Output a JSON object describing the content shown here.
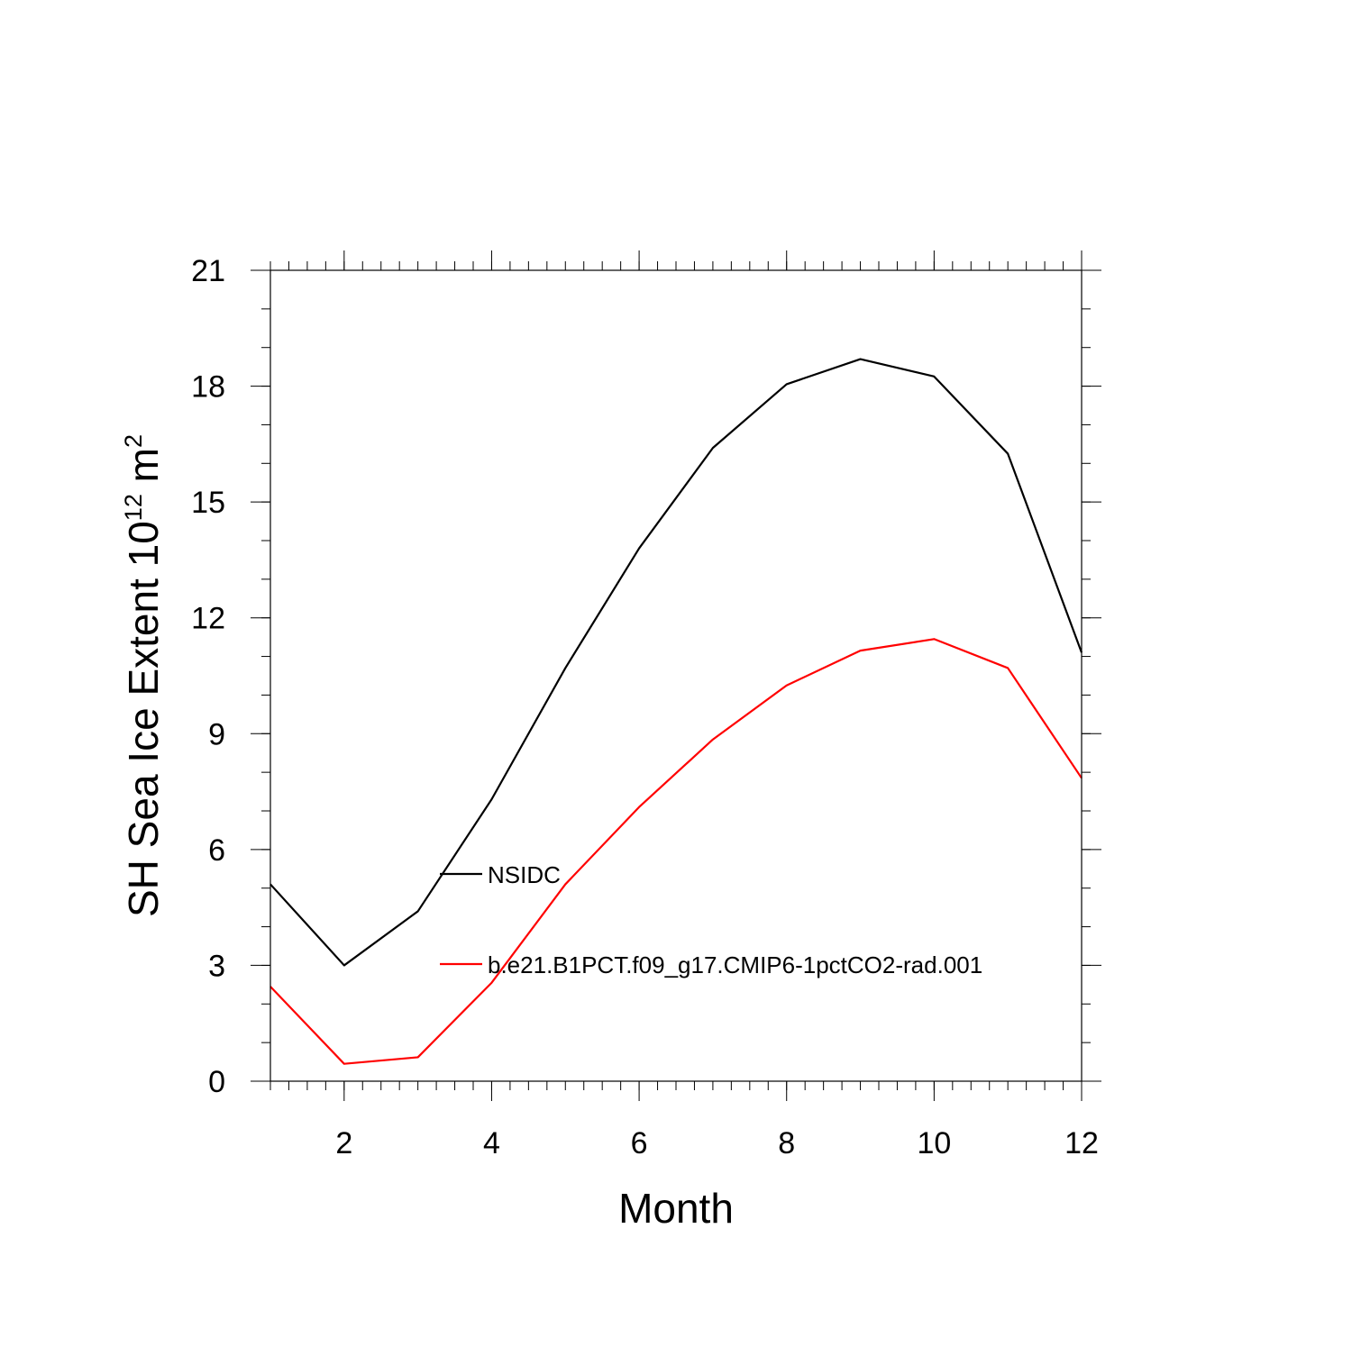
{
  "chart_data": {
    "type": "line",
    "title": "",
    "xlabel": "Month",
    "ylabel": {
      "main": "SH Sea Ice Extent 10",
      "exponent": "12",
      "unit": " m",
      "unit_exponent": "2"
    },
    "xlim": [
      1,
      12
    ],
    "ylim": [
      0,
      21
    ],
    "x_ticks": [
      2,
      4,
      6,
      8,
      10,
      12
    ],
    "y_ticks": [
      0,
      3,
      6,
      9,
      12,
      15,
      18,
      21
    ],
    "x": [
      1,
      2,
      3,
      4,
      5,
      6,
      7,
      8,
      9,
      10,
      11,
      12
    ],
    "series": [
      {
        "name": "NSIDC",
        "color": "#000000",
        "values": [
          5.1,
          3.0,
          4.4,
          7.3,
          10.7,
          13.8,
          16.4,
          18.05,
          18.7,
          18.25,
          16.25,
          11.1
        ]
      },
      {
        "name": "b.e21.B1PCT.f09_g17.CMIP6-1pctCO2-rad.001",
        "color": "#ff0000",
        "values": [
          2.45,
          0.45,
          0.62,
          2.55,
          5.1,
          7.1,
          8.85,
          10.25,
          11.15,
          11.45,
          10.7,
          7.85
        ]
      }
    ],
    "grid": false,
    "legend_placement": "inside-lower-center"
  }
}
